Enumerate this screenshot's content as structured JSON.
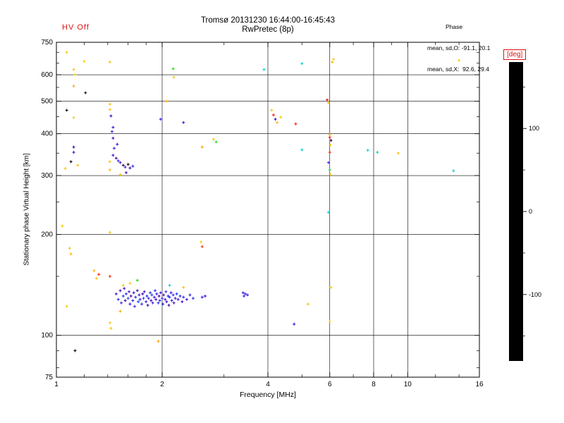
{
  "header": {
    "hv_label": "HV Off",
    "title": "Tromsø 20131230 16:44:00-16:45:43",
    "subtitle": "RwPretec (8p)",
    "stats_title": "Phase",
    "stats_line1": "mean, sd,O: -91.1, 20.1",
    "stats_line2": "mean, sd,X:  92.6, 29.4"
  },
  "colors": {
    "accent_red": "#dd1111",
    "axis": "#000000",
    "background": "#ffffff"
  },
  "chart_data": {
    "type": "scatter",
    "title": "Tromsø 20131230 16:44:00-16:45:43",
    "subtitle": "RwPretec (8p)",
    "xlabel": "Frequency [MHz]",
    "ylabel": "Stationary phase Virtual Height [km]",
    "xscale": "log",
    "yscale": "log",
    "xlim": [
      1,
      16
    ],
    "ylim": [
      75,
      750
    ],
    "x_major_ticks": [
      1,
      2,
      4,
      6,
      8,
      10,
      16
    ],
    "x_minor_ticks": [
      1.2,
      1.4,
      1.6,
      1.8,
      3,
      5,
      7,
      9,
      12,
      14
    ],
    "y_major_ticks": [
      75,
      100,
      200,
      300,
      400,
      500,
      600,
      750
    ],
    "y_minor_ticks": [
      80,
      90,
      150,
      250,
      350,
      450,
      550,
      650,
      700
    ],
    "grid": true,
    "marker": "plus",
    "legend": "none",
    "colorbar": {
      "label": "[deg]",
      "range": [
        -180,
        180
      ],
      "ticks": [
        100,
        0,
        -100
      ],
      "minor_ticks": [
        150,
        50,
        -50,
        -150
      ],
      "stops": [
        [
          0.0,
          "#000000"
        ],
        [
          0.06,
          "#20002c"
        ],
        [
          0.13,
          "#500090"
        ],
        [
          0.2,
          "#3c14e0"
        ],
        [
          0.28,
          "#0050ff"
        ],
        [
          0.36,
          "#0096ff"
        ],
        [
          0.44,
          "#00cce0"
        ],
        [
          0.5,
          "#00dca0"
        ],
        [
          0.57,
          "#00d850"
        ],
        [
          0.64,
          "#30dc00"
        ],
        [
          0.71,
          "#8ce400"
        ],
        [
          0.77,
          "#e0e000"
        ],
        [
          0.84,
          "#ffbe00"
        ],
        [
          0.9,
          "#ff7800"
        ],
        [
          0.95,
          "#ff3000"
        ],
        [
          1.0,
          "#ff0000"
        ]
      ]
    },
    "points_format": [
      "frequency_MHz",
      "virtual_height_km",
      "phase_deg"
    ],
    "points": [
      [
        1.07,
        700,
        115
      ],
      [
        1.12,
        622,
        122
      ],
      [
        1.13,
        600,
        108
      ],
      [
        1.2,
        658,
        115
      ],
      [
        1.42,
        655,
        118
      ],
      [
        2.15,
        625,
        45
      ],
      [
        2.16,
        590,
        115
      ],
      [
        3.9,
        622,
        -18
      ],
      [
        5.0,
        648,
        -12
      ],
      [
        6.1,
        655,
        125
      ],
      [
        6.15,
        668,
        118
      ],
      [
        14.0,
        662,
        115
      ],
      [
        1.07,
        470,
        -170
      ],
      [
        1.12,
        555,
        130
      ],
      [
        1.12,
        447,
        115
      ],
      [
        1.21,
        530,
        -162
      ],
      [
        1.42,
        490,
        115
      ],
      [
        1.42,
        472,
        122
      ],
      [
        1.43,
        452,
        -118
      ],
      [
        1.98,
        442,
        -102
      ],
      [
        2.06,
        500,
        132
      ],
      [
        2.3,
        432,
        -112
      ],
      [
        4.1,
        470,
        115
      ],
      [
        4.15,
        455,
        172
      ],
      [
        4.2,
        442,
        -122
      ],
      [
        4.25,
        432,
        125
      ],
      [
        4.35,
        448,
        110
      ],
      [
        4.8,
        428,
        168
      ],
      [
        5.9,
        505,
        172
      ],
      [
        5.95,
        495,
        125
      ],
      [
        6.0,
        398,
        125
      ],
      [
        6.0,
        390,
        172
      ],
      [
        6.05,
        382,
        -152
      ],
      [
        6.02,
        370,
        118
      ],
      [
        7.7,
        357,
        -22
      ],
      [
        8.2,
        352,
        -12
      ],
      [
        9.4,
        350,
        120
      ],
      [
        13.5,
        310,
        -20
      ],
      [
        5.0,
        358,
        -18
      ],
      [
        6.0,
        352,
        168
      ],
      [
        1.06,
        315,
        115
      ],
      [
        1.1,
        330,
        -170
      ],
      [
        1.12,
        365,
        -122
      ],
      [
        1.12,
        352,
        -112
      ],
      [
        1.15,
        322,
        115
      ],
      [
        1.42,
        330,
        120
      ],
      [
        1.42,
        312,
        125
      ],
      [
        1.45,
        345,
        -112
      ],
      [
        1.48,
        338,
        -128
      ],
      [
        1.5,
        332,
        -104
      ],
      [
        1.52,
        328,
        -120
      ],
      [
        1.55,
        322,
        -148
      ],
      [
        1.57,
        318,
        -110
      ],
      [
        1.6,
        324,
        -168
      ],
      [
        1.62,
        316,
        -122
      ],
      [
        1.65,
        320,
        -96
      ],
      [
        1.58,
        306,
        -116
      ],
      [
        1.52,
        302,
        120
      ],
      [
        1.46,
        362,
        -102
      ],
      [
        1.49,
        372,
        -114
      ],
      [
        1.45,
        388,
        -120
      ],
      [
        1.44,
        406,
        -100
      ],
      [
        1.45,
        418,
        -110
      ],
      [
        2.6,
        365,
        132
      ],
      [
        2.8,
        385,
        115
      ],
      [
        2.85,
        378,
        42
      ],
      [
        6.0,
        312,
        35
      ],
      [
        6.02,
        302,
        115
      ],
      [
        5.95,
        328,
        -108
      ],
      [
        1.04,
        212,
        115
      ],
      [
        1.09,
        182,
        118
      ],
      [
        1.1,
        175,
        125
      ],
      [
        1.42,
        203,
        115
      ],
      [
        1.42,
        150,
        170
      ],
      [
        1.32,
        152,
        168
      ],
      [
        1.3,
        148,
        118
      ],
      [
        1.28,
        156,
        125
      ],
      [
        2.58,
        190,
        115
      ],
      [
        2.6,
        184,
        166
      ],
      [
        5.95,
        233,
        -22
      ],
      [
        1.07,
        122,
        115
      ],
      [
        1.13,
        90,
        -172
      ],
      [
        1.42,
        109,
        115
      ],
      [
        1.43,
        105,
        122
      ],
      [
        1.95,
        96,
        132
      ],
      [
        4.75,
        108,
        -112
      ],
      [
        5.2,
        124,
        115
      ],
      [
        6.0,
        110,
        118
      ],
      [
        6.05,
        139,
        115
      ],
      [
        1.48,
        133,
        -110
      ],
      [
        1.5,
        128,
        -95
      ],
      [
        1.52,
        136,
        -120
      ],
      [
        1.53,
        125,
        -105
      ],
      [
        1.55,
        131,
        -88
      ],
      [
        1.56,
        138,
        -115
      ],
      [
        1.57,
        127,
        -125
      ],
      [
        1.58,
        133,
        -100
      ],
      [
        1.6,
        129,
        -92
      ],
      [
        1.61,
        135,
        -118
      ],
      [
        1.62,
        124,
        -108
      ],
      [
        1.63,
        131,
        -130
      ],
      [
        1.65,
        127,
        -98
      ],
      [
        1.66,
        134,
        -112
      ],
      [
        1.67,
        122,
        -104
      ],
      [
        1.68,
        130,
        -96
      ],
      [
        1.7,
        136,
        -122
      ],
      [
        1.71,
        126,
        -86
      ],
      [
        1.72,
        132,
        -114
      ],
      [
        1.73,
        128,
        -106
      ],
      [
        1.75,
        124,
        -99
      ],
      [
        1.76,
        133,
        -127
      ],
      [
        1.77,
        129,
        -90
      ],
      [
        1.78,
        135,
        -116
      ],
      [
        1.8,
        126,
        -102
      ],
      [
        1.81,
        131,
        -94
      ],
      [
        1.82,
        123,
        -121
      ],
      [
        1.83,
        129,
        -109
      ],
      [
        1.85,
        134,
        -97
      ],
      [
        1.86,
        127,
        -124
      ],
      [
        1.87,
        132,
        -89
      ],
      [
        1.88,
        125,
        -111
      ],
      [
        1.9,
        130,
        -103
      ],
      [
        1.91,
        136,
        -93
      ],
      [
        1.92,
        128,
        -119
      ],
      [
        1.93,
        133,
        -107
      ],
      [
        1.95,
        125,
        -100
      ],
      [
        1.96,
        131,
        -126
      ],
      [
        1.97,
        127,
        -91
      ],
      [
        1.98,
        134,
        -113
      ],
      [
        2.0,
        129,
        -105
      ],
      [
        2.01,
        124,
        -96
      ],
      [
        2.02,
        132,
        -123
      ],
      [
        2.04,
        128,
        -108
      ],
      [
        2.05,
        135,
        -95
      ],
      [
        2.06,
        126,
        -117
      ],
      [
        2.08,
        131,
        -101
      ],
      [
        2.09,
        123,
        -128
      ],
      [
        2.1,
        130,
        -92
      ],
      [
        2.12,
        134,
        -110
      ],
      [
        2.13,
        127,
        -104
      ],
      [
        2.15,
        132,
        -98
      ],
      [
        2.16,
        125,
        -120
      ],
      [
        2.18,
        129,
        -112
      ],
      [
        2.2,
        133,
        -87
      ],
      [
        2.22,
        128,
        -106
      ],
      [
        2.25,
        131,
        -99
      ],
      [
        2.28,
        126,
        -115
      ],
      [
        2.3,
        130,
        -94
      ],
      [
        2.35,
        128,
        -109
      ],
      [
        2.4,
        132,
        -102
      ],
      [
        2.45,
        129,
        -97
      ],
      [
        1.55,
        141,
        115
      ],
      [
        1.62,
        143,
        118
      ],
      [
        1.7,
        146,
        45
      ],
      [
        2.1,
        141,
        -22
      ],
      [
        2.3,
        139,
        122
      ],
      [
        1.52,
        118,
        130
      ],
      [
        2.6,
        130,
        -105
      ],
      [
        2.65,
        131,
        -112
      ],
      [
        3.4,
        134,
        -108
      ],
      [
        3.45,
        133,
        -100
      ],
      [
        3.5,
        132,
        -116
      ],
      [
        3.42,
        131,
        -95
      ]
    ]
  }
}
